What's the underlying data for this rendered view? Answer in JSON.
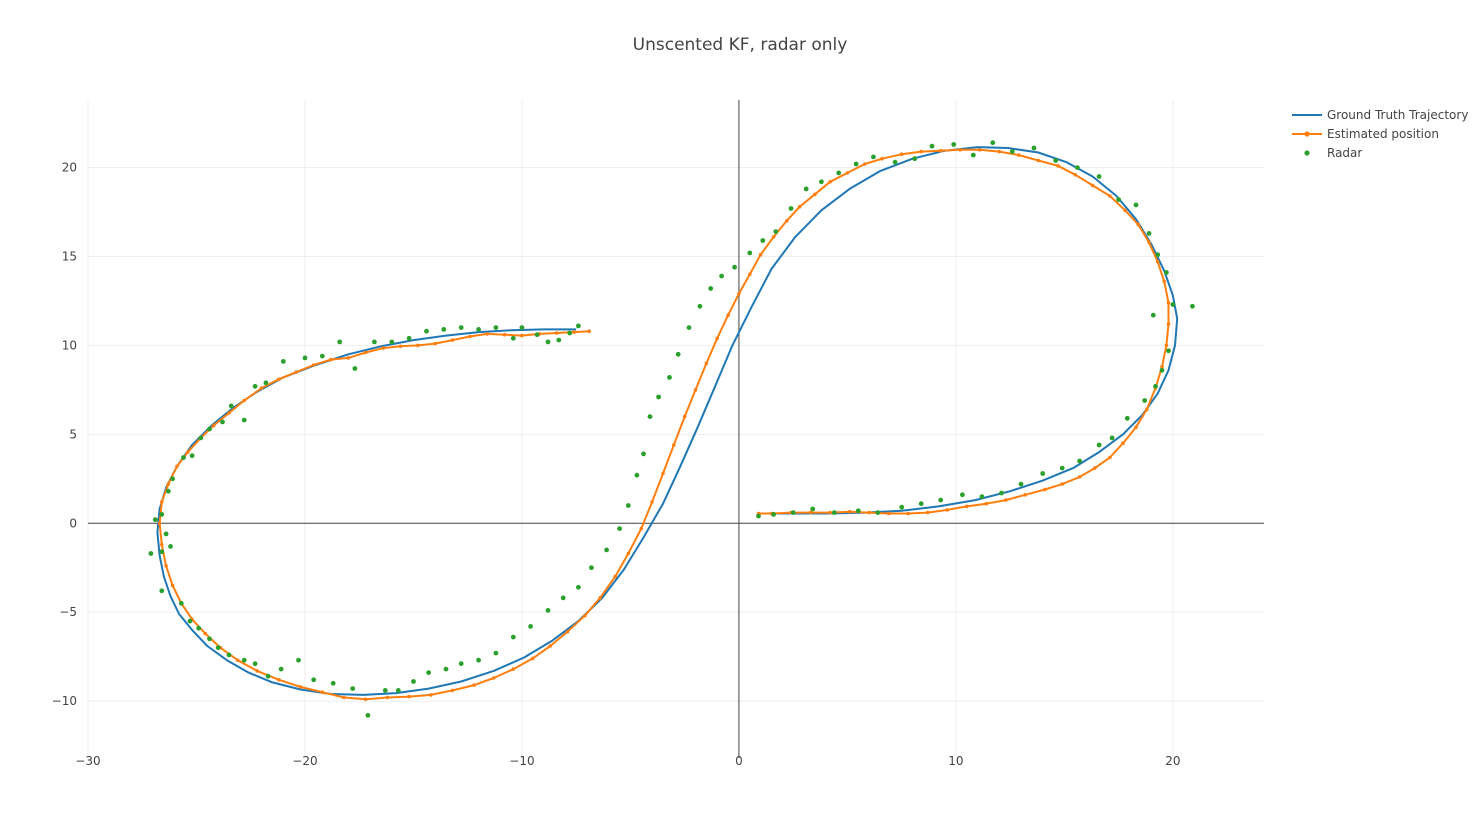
{
  "chart_data": {
    "type": "scatter",
    "title": "Unscented KF, radar only",
    "xlabel": "",
    "ylabel": "",
    "xlim": [
      -30,
      24.2
    ],
    "ylim": [
      -13.2,
      23.8
    ],
    "xticks": [
      -30,
      -20,
      -10,
      0,
      10,
      20
    ],
    "yticks": [
      -10,
      -5,
      0,
      5,
      10,
      15,
      20
    ],
    "xtick_labels": [
      "−30",
      "−20",
      "−10",
      "0",
      "10",
      "20"
    ],
    "ytick_labels": [
      "−10",
      "−5",
      "0",
      "5",
      "10",
      "15",
      "20"
    ],
    "grid": true,
    "zero_lines": true,
    "legend_position": "top-right",
    "series": [
      {
        "name": "Ground Truth Trajectory",
        "mode": "lines",
        "color": "#1f77b4",
        "x": [
          -7.5,
          -9,
          -10.5,
          -12,
          -13.5,
          -15,
          -16.5,
          -18,
          -19.5,
          -21,
          -22.2,
          -23.3,
          -24.3,
          -25.2,
          -25.9,
          -26.4,
          -26.7,
          -26.8,
          -26.7,
          -26.5,
          -26.2,
          -25.8,
          -25.2,
          -24.5,
          -23.6,
          -22.6,
          -21.5,
          -20.2,
          -18.8,
          -17.3,
          -15.8,
          -14.3,
          -12.8,
          -11.3,
          -9.9,
          -8.6,
          -7.4,
          -6.3,
          -5.3,
          -4.4,
          -3.5,
          -2.7,
          -1.9,
          -1.1,
          -0.3,
          0.6,
          1.5,
          2.6,
          3.8,
          5.1,
          6.5,
          8,
          9.5,
          11,
          12.4,
          13.8,
          15.1,
          16.3,
          17.4,
          18.3,
          19,
          19.6,
          20,
          20.2,
          20.1,
          19.8,
          19.3,
          18.6,
          17.7,
          16.6,
          15.4,
          14,
          12.5,
          10.9,
          9.2,
          7.5,
          5.8,
          4.1,
          2.5,
          1
        ],
        "y": [
          10.9,
          10.9,
          10.85,
          10.75,
          10.55,
          10.3,
          9.95,
          9.5,
          8.9,
          8.2,
          7.4,
          6.5,
          5.5,
          4.4,
          3.2,
          2,
          0.8,
          -0.5,
          -1.8,
          -3,
          -4.1,
          -5.1,
          -6,
          -6.9,
          -7.7,
          -8.4,
          -8.95,
          -9.35,
          -9.6,
          -9.65,
          -9.55,
          -9.3,
          -8.9,
          -8.3,
          -7.55,
          -6.6,
          -5.5,
          -4.2,
          -2.6,
          -0.8,
          1.1,
          3.2,
          5.4,
          7.7,
          10,
          12.2,
          14.3,
          16.1,
          17.6,
          18.8,
          19.8,
          20.5,
          20.95,
          21.15,
          21.1,
          20.85,
          20.3,
          19.5,
          18.4,
          17.1,
          15.7,
          14.2,
          12.8,
          11.5,
          10,
          8.6,
          7.3,
          6.1,
          5,
          4,
          3.1,
          2.4,
          1.8,
          1.3,
          0.95,
          0.7,
          0.6,
          0.55,
          0.55,
          0.55
        ]
      },
      {
        "name": "Estimated position",
        "mode": "lines+markers",
        "color": "#ff7f0e",
        "x": [
          -6.9,
          -7.6,
          -8.4,
          -9.2,
          -10,
          -10.8,
          -11.6,
          -12.4,
          -13.2,
          -14,
          -14.8,
          -15.6,
          -16.4,
          -17.2,
          -18,
          -18.8,
          -19.6,
          -20.4,
          -21.2,
          -22,
          -22.8,
          -23.5,
          -24.2,
          -24.8,
          -25.4,
          -25.9,
          -26.3,
          -26.6,
          -26.7,
          -26.6,
          -26.4,
          -26.1,
          -25.7,
          -25.2,
          -24.6,
          -23.9,
          -23.1,
          -22.2,
          -21.2,
          -20.2,
          -19.2,
          -18.2,
          -17.2,
          -16.2,
          -15.2,
          -14.2,
          -13.2,
          -12.2,
          -11.3,
          -10.4,
          -9.5,
          -8.7,
          -7.9,
          -7.1,
          -6.4,
          -5.7,
          -5.1,
          -4.5,
          -4,
          -3.5,
          -3,
          -2.5,
          -2,
          -1.5,
          -1,
          -0.5,
          0,
          0.5,
          1,
          1.6,
          2.2,
          2.8,
          3.5,
          4.2,
          5,
          5.8,
          6.6,
          7.5,
          8.4,
          9.3,
          10.2,
          11.1,
          12,
          12.9,
          13.8,
          14.7,
          15.5,
          16.3,
          17.1,
          17.8,
          18.4,
          18.9,
          19.3,
          19.6,
          19.8,
          19.8,
          19.7,
          19.5,
          19.2,
          18.8,
          18.3,
          17.7,
          17.1,
          16.4,
          15.7,
          14.9,
          14.1,
          13.2,
          12.3,
          11.4,
          10.5,
          9.6,
          8.7,
          7.8,
          6.9,
          6,
          5.1,
          4.2,
          3.3,
          2.4,
          1.5,
          0.9
        ],
        "y": [
          10.8,
          10.75,
          10.7,
          10.65,
          10.55,
          10.6,
          10.65,
          10.5,
          10.3,
          10.1,
          10,
          9.95,
          9.85,
          9.6,
          9.3,
          9.2,
          8.9,
          8.5,
          8.1,
          7.6,
          6.9,
          6.2,
          5.5,
          4.8,
          4,
          3.2,
          2.2,
          1.2,
          0,
          -1.2,
          -2.4,
          -3.5,
          -4.5,
          -5.4,
          -6.2,
          -7,
          -7.7,
          -8.3,
          -8.8,
          -9.2,
          -9.5,
          -9.8,
          -9.9,
          -9.8,
          -9.75,
          -9.65,
          -9.4,
          -9.1,
          -8.7,
          -8.2,
          -7.6,
          -6.9,
          -6.1,
          -5.2,
          -4.2,
          -3,
          -1.7,
          -0.3,
          1.2,
          2.8,
          4.4,
          6,
          7.5,
          9,
          10.4,
          11.7,
          12.9,
          14,
          15.1,
          16.1,
          17,
          17.8,
          18.5,
          19.2,
          19.7,
          20.2,
          20.5,
          20.75,
          20.9,
          20.95,
          21,
          21,
          20.9,
          20.7,
          20.4,
          20.1,
          19.6,
          19,
          18.4,
          17.6,
          16.8,
          15.8,
          14.7,
          13.6,
          12.4,
          11.2,
          10,
          8.8,
          7.6,
          6.4,
          5.4,
          4.5,
          3.7,
          3.1,
          2.6,
          2.2,
          1.9,
          1.6,
          1.3,
          1.1,
          0.95,
          0.75,
          0.6,
          0.55,
          0.55,
          0.6,
          0.65,
          0.6,
          0.6,
          0.6,
          0.55,
          0.55
        ]
      },
      {
        "name": "Radar",
        "mode": "markers",
        "color": "#2ca02c",
        "x": [
          -7.4,
          -7.8,
          -8.3,
          -8.8,
          -9.3,
          -10,
          -10.4,
          -11.2,
          -12,
          -12.8,
          -13.6,
          -14.4,
          -15.2,
          -16,
          -16.8,
          -17.7,
          -18.4,
          -19.2,
          -20,
          -21,
          -21.8,
          -22.3,
          -22.8,
          -23.4,
          -23.8,
          -24.4,
          -24.8,
          -25.2,
          -25.6,
          -26.1,
          -26.3,
          -26.6,
          -26.9,
          -27.1,
          -26.6,
          -26.4,
          -26.2,
          -26.6,
          -25.7,
          -25.3,
          -24.9,
          -24.4,
          -24,
          -23.5,
          -22.8,
          -22.3,
          -21.7,
          -21.1,
          -20.3,
          -19.6,
          -18.7,
          -17.8,
          -17.1,
          -16.3,
          -15.7,
          -15,
          -14.3,
          -13.5,
          -12.8,
          -12,
          -11.2,
          -10.4,
          -9.6,
          -8.8,
          -8.1,
          -7.4,
          -6.8,
          -6.1,
          -5.5,
          -5.1,
          -4.7,
          -4.4,
          -4.1,
          -3.7,
          -3.2,
          -2.8,
          -2.3,
          -1.8,
          -1.3,
          -0.8,
          -0.2,
          0.5,
          1.1,
          1.7,
          2.4,
          3.1,
          3.8,
          4.6,
          5.4,
          6.2,
          7.2,
          8.1,
          8.9,
          9.9,
          10.8,
          11.7,
          12.6,
          13.6,
          14.6,
          15.6,
          16.6,
          17.5,
          18.3,
          18.9,
          19.3,
          19.7,
          20,
          20.9,
          19.1,
          19.8,
          19.5,
          19.2,
          18.7,
          17.9,
          17.2,
          16.6,
          15.7,
          14.9,
          14,
          13,
          12.1,
          11.2,
          10.3,
          9.3,
          8.4,
          7.5,
          6.4,
          5.5,
          4.4,
          3.4,
          2.5,
          1.6,
          0.9
        ],
        "y": [
          11.1,
          10.7,
          10.3,
          10.2,
          10.6,
          11,
          10.4,
          11,
          10.9,
          11,
          10.9,
          10.8,
          10.4,
          10.2,
          10.2,
          8.7,
          10.2,
          9.4,
          9.3,
          9.1,
          7.9,
          7.7,
          5.8,
          6.6,
          5.7,
          5.3,
          4.8,
          3.8,
          3.7,
          2.5,
          1.8,
          0.5,
          0.2,
          -1.7,
          -1.6,
          -0.6,
          -1.3,
          -3.8,
          -4.5,
          -5.5,
          -5.9,
          -6.5,
          -7,
          -7.4,
          -7.7,
          -7.9,
          -8.6,
          -8.2,
          -7.7,
          -8.8,
          -9,
          -9.3,
          -10.8,
          -9.4,
          -9.4,
          -8.9,
          -8.4,
          -8.2,
          -7.9,
          -7.7,
          -7.3,
          -6.4,
          -5.8,
          -4.9,
          -4.2,
          -3.6,
          -2.5,
          -1.5,
          -0.3,
          1,
          2.7,
          3.9,
          6,
          7.1,
          8.2,
          9.5,
          11,
          12.2,
          13.2,
          13.9,
          14.4,
          15.2,
          15.9,
          16.4,
          17.7,
          18.8,
          19.2,
          19.7,
          20.2,
          20.6,
          20.3,
          20.5,
          21.2,
          21.3,
          20.7,
          21.4,
          20.9,
          21.1,
          20.4,
          20,
          19.5,
          18.2,
          17.9,
          16.3,
          15.1,
          14.1,
          12.3,
          12.2,
          11.7,
          9.7,
          8.6,
          7.7,
          6.9,
          5.9,
          4.8,
          4.4,
          3.5,
          3.1,
          2.8,
          2.2,
          1.7,
          1.5,
          1.6,
          1.3,
          1.1,
          0.9,
          0.6,
          0.7,
          0.6,
          0.8,
          0.6,
          0.5,
          0.4
        ]
      }
    ]
  }
}
